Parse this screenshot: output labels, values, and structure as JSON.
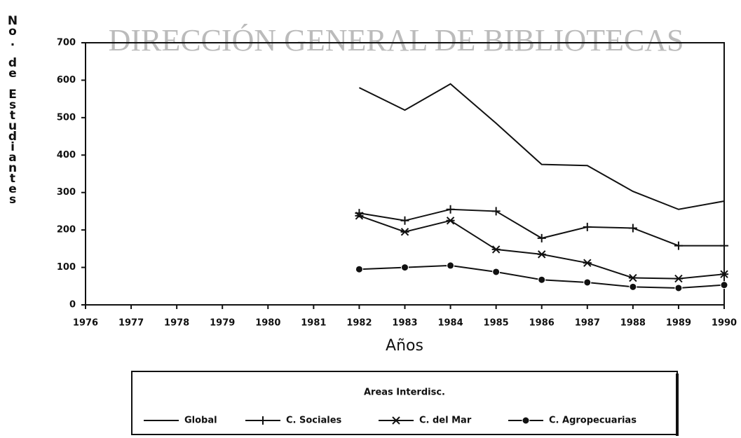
{
  "chart_data": {
    "type": "line",
    "watermark": "DIRECCIÓN GENERAL DE BIBLIOTECAS",
    "y_label": "No. de Estudiantes",
    "x_label": "Años",
    "legend_title": "Areas Interdisc.",
    "x": [
      1982,
      1983,
      1984,
      1985,
      1986,
      1987,
      1988,
      1989,
      1990
    ],
    "xlim": [
      1976,
      1990
    ],
    "xticks": [
      1976,
      1977,
      1978,
      1979,
      1980,
      1981,
      1982,
      1983,
      1984,
      1985,
      1986,
      1987,
      1988,
      1989,
      1990
    ],
    "ylim": [
      0,
      700
    ],
    "yticks": [
      0,
      100,
      200,
      300,
      400,
      500,
      600,
      700
    ],
    "grid": false,
    "legend": "bottom",
    "series": [
      {
        "name": "Global",
        "color": "#111111",
        "marker": "none",
        "values": [
          580,
          520,
          590,
          485,
          375,
          372,
          303,
          255,
          277
        ]
      },
      {
        "name": "C. Sociales",
        "color": "#111111",
        "marker": "plus",
        "values": [
          245,
          225,
          255,
          250,
          178,
          208,
          205,
          158,
          158
        ]
      },
      {
        "name": "C. del Mar",
        "color": "#111111",
        "marker": "x",
        "values": [
          238,
          195,
          225,
          148,
          135,
          112,
          72,
          70,
          82
        ]
      },
      {
        "name": "C. Agropecuarias",
        "color": "#111111",
        "marker": "circle",
        "values": [
          95,
          100,
          105,
          88,
          67,
          60,
          48,
          45,
          53
        ]
      }
    ]
  }
}
